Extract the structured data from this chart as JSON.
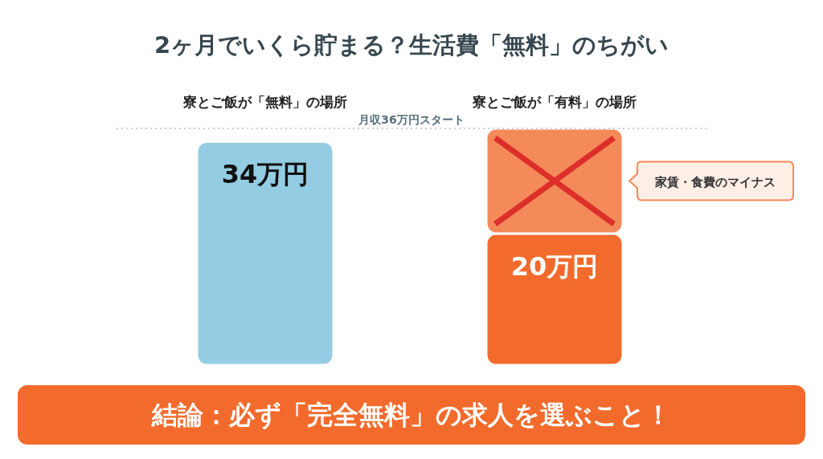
{
  "chart_data": {
    "type": "bar",
    "title": "2ヶ月でいくら貯まる？生活費「無料」のちがい",
    "categories": [
      "寮とご飯が「無料」の場所",
      "寮とご飯が「有料」の場所"
    ],
    "stacked": true,
    "series": [
      {
        "colors": [
          "#94cce3",
          "#f26b2c"
        ],
        "values": [
          34,
          20
        ],
        "value_labels": [
          "34万円",
          "20万円"
        ]
      },
      {
        "name": "家賃・食費のマイナス",
        "color": "#f4895a",
        "values": [
          null,
          16
        ]
      }
    ],
    "ref_lines": [
      {
        "axis": "y",
        "value": 36,
        "label": "月収36万円スタート",
        "line_style": "dotted",
        "color": "#9e9e9e"
      }
    ],
    "annotations": [
      "結論：必ず「完全無料」の求人を選ぶこと！"
    ]
  }
}
